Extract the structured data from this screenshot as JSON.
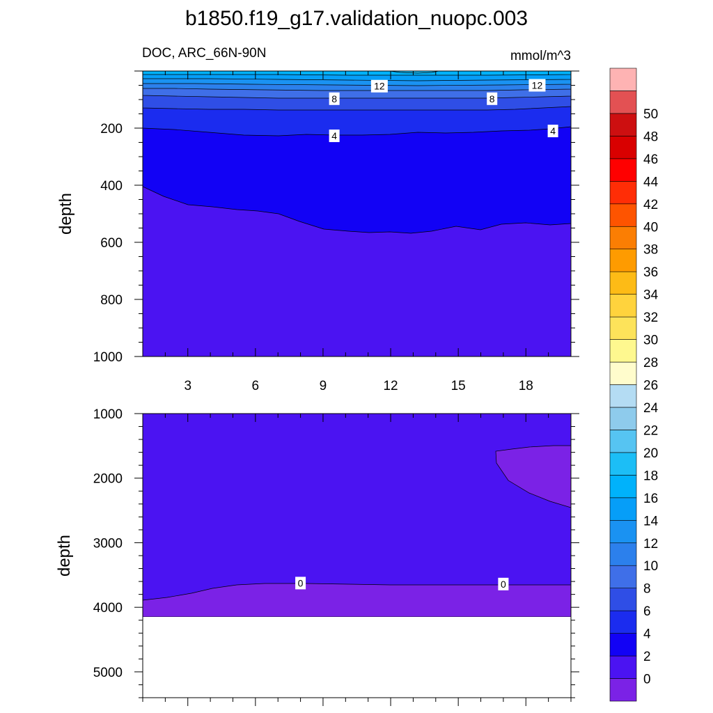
{
  "chart_data": {
    "type": "contour",
    "title": "b1850.f19_g17.validation_nuopc.003",
    "units": "mmol/m^3",
    "colorbar": {
      "levels": [
        0,
        2,
        4,
        6,
        8,
        10,
        12,
        14,
        16,
        18,
        20,
        22,
        24,
        26,
        28,
        30,
        32,
        34,
        36,
        38,
        40,
        42,
        44,
        46,
        48,
        50
      ],
      "labels": [
        "0",
        "2",
        "4",
        "6",
        "8",
        "10",
        "12",
        "14",
        "16",
        "18",
        "20",
        "22",
        "24",
        "26",
        "28",
        "30",
        "32",
        "34",
        "36",
        "38",
        "40",
        "42",
        "44",
        "46",
        "48",
        "50"
      ],
      "colors": [
        "#7b22e6",
        "#4b13f2",
        "#1202f5",
        "#1b2cef",
        "#2f4ee6",
        "#3f6fe8",
        "#2c80ec",
        "#1a92f2",
        "#069ef8",
        "#00b2fb",
        "#1cbef6",
        "#56c4f2",
        "#8ecbec",
        "#b4dcf3",
        "#fffccc",
        "#fef88f",
        "#fde35a",
        "#ffd33d",
        "#fdbb16",
        "#fe9b00",
        "#fb7e03",
        "#fe5400",
        "#ff2d06",
        "#ff0000",
        "#d90000",
        "#cd0f10",
        "#e35153",
        "#feb3b3"
      ]
    },
    "panels": [
      {
        "name": "upper",
        "subtitle_left": "DOC, ARC_66N-90N",
        "subtitle_right": "mmol/m^3",
        "xlim": [
          1,
          20
        ],
        "ylim": [
          0,
          1000
        ],
        "xlabel": "",
        "ylabel": "depth",
        "xticks": [
          3,
          6,
          9,
          12,
          15,
          18
        ],
        "xtick_labels": [
          "3",
          "6",
          "9",
          "12",
          "15",
          "18"
        ],
        "yticks": [
          200,
          400,
          600,
          800,
          1000
        ],
        "ytick_labels": [
          "200",
          "400",
          "600",
          "800",
          "1000"
        ],
        "contour_labels": [
          {
            "text": "12",
            "x": 11.5,
            "y": 53
          },
          {
            "text": "12",
            "x": 18.5,
            "y": 50
          },
          {
            "text": "8",
            "x": 9.5,
            "y": 97
          },
          {
            "text": "8",
            "x": 16.5,
            "y": 97
          },
          {
            "text": "4",
            "x": 9.5,
            "y": 227
          },
          {
            "text": "4",
            "x": 19.2,
            "y": 210
          }
        ]
      },
      {
        "name": "lower",
        "xlim": [
          1,
          20
        ],
        "ylim": [
          1000,
          5400
        ],
        "xlabel": "",
        "ylabel": "depth",
        "yticks": [
          1000,
          2000,
          3000,
          4000,
          5000
        ],
        "ytick_labels": [
          "1000",
          "2000",
          "3000",
          "4000",
          "5000"
        ],
        "ocean_floor_depth": 4130,
        "contour_labels": [
          {
            "text": "0",
            "x": 8,
            "y": 3625
          },
          {
            "text": "0",
            "x": 17,
            "y": 3640
          }
        ]
      }
    ]
  }
}
